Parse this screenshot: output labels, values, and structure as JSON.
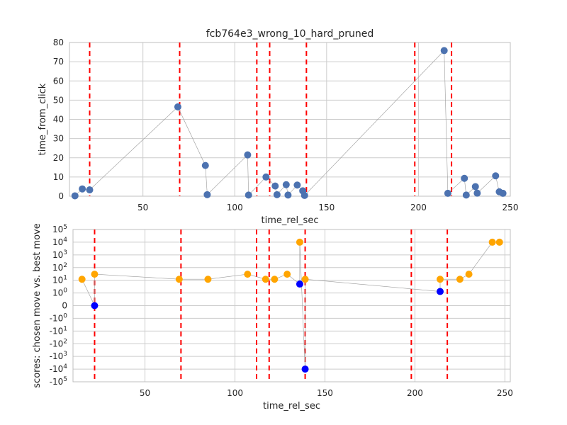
{
  "title": "fcb764e3_wrong_10_hard_pruned",
  "colors": {
    "grid": "#cccccc",
    "frame": "#bfbfbf",
    "vline": "#ff0000",
    "top_point": "#4c72b0",
    "best_point": "#0000ff",
    "chosen_point": "#ffa500",
    "connector": "#9a9a9a"
  },
  "chart_data": [
    {
      "type": "scatter",
      "xlabel": "time_rel_sec",
      "ylabel": "time_from_click",
      "xlim": [
        10,
        250
      ],
      "ylim": [
        0,
        80
      ],
      "xticks": [
        50,
        100,
        150,
        200,
        250
      ],
      "xtick_labels": [
        "50",
        "100",
        "150",
        "200",
        "250"
      ],
      "yticks": [
        0,
        10,
        20,
        30,
        40,
        50,
        60,
        70,
        80
      ],
      "ytick_labels": [
        "0",
        "10",
        "20",
        "30",
        "40",
        "50",
        "60",
        "70",
        "80"
      ],
      "grid": true,
      "vlines": [
        21,
        70,
        112,
        119,
        139,
        198,
        218
      ],
      "points": [
        {
          "x": 13,
          "y": 0.2
        },
        {
          "x": 17,
          "y": 3.8
        },
        {
          "x": 21,
          "y": 3.3
        },
        {
          "x": 69,
          "y": 46.5
        },
        {
          "x": 84,
          "y": 16
        },
        {
          "x": 85,
          "y": 0.8
        },
        {
          "x": 107,
          "y": 21.5
        },
        {
          "x": 107.5,
          "y": 0.6
        },
        {
          "x": 117,
          "y": 10
        },
        {
          "x": 122,
          "y": 5.3
        },
        {
          "x": 123,
          "y": 0.8
        },
        {
          "x": 128,
          "y": 6
        },
        {
          "x": 129,
          "y": 0.6
        },
        {
          "x": 134,
          "y": 5.8
        },
        {
          "x": 137,
          "y": 2.8
        },
        {
          "x": 138,
          "y": 0.4
        },
        {
          "x": 214,
          "y": 75.8
        },
        {
          "x": 216,
          "y": 1.5
        },
        {
          "x": 225,
          "y": 9.3
        },
        {
          "x": 226,
          "y": 0.6
        },
        {
          "x": 231,
          "y": 5
        },
        {
          "x": 232,
          "y": 1.6
        },
        {
          "x": 242,
          "y": 10.6
        },
        {
          "x": 244,
          "y": 2.3
        },
        {
          "x": 246,
          "y": 1.5
        }
      ]
    },
    {
      "type": "scatter",
      "xlabel": "time_rel_sec",
      "ylabel": "scores: chosen move vs. best move",
      "yscale": "symlog",
      "xlim": [
        10,
        253
      ],
      "xticks": [
        50,
        100,
        150,
        200,
        250
      ],
      "xtick_labels": [
        "50",
        "100",
        "150",
        "200",
        "250"
      ],
      "yticks": [
        -100000,
        -10000,
        -1000,
        -100,
        -10,
        -1,
        0,
        1,
        10,
        100,
        1000,
        10000,
        100000
      ],
      "ytick_labels": [
        "-10^5",
        "-10^4",
        "-10^3",
        "-10^2",
        "-10^1",
        "-10^0",
        "0",
        "10^0",
        "10^1",
        "10^2",
        "10^3",
        "10^4",
        "10^5"
      ],
      "grid": true,
      "vlines": [
        22,
        70,
        112,
        119,
        139,
        198,
        218
      ],
      "series": [
        {
          "color": "blue",
          "points": [
            {
              "x": 22,
              "y": 0
            },
            {
              "x": 136,
              "y": 5
            },
            {
              "x": 139,
              "y": -10000
            },
            {
              "x": 214,
              "y": 1.3
            }
          ]
        },
        {
          "color": "orange",
          "points": [
            {
              "x": 15,
              "y": 12
            },
            {
              "x": 22,
              "y": 30
            },
            {
              "x": 69,
              "y": 12
            },
            {
              "x": 85,
              "y": 12
            },
            {
              "x": 107,
              "y": 30
            },
            {
              "x": 117,
              "y": 12
            },
            {
              "x": 122,
              "y": 12
            },
            {
              "x": 129,
              "y": 30
            },
            {
              "x": 136,
              "y": 10000
            },
            {
              "x": 139,
              "y": 12
            },
            {
              "x": 214,
              "y": 12
            },
            {
              "x": 225,
              "y": 12
            },
            {
              "x": 230,
              "y": 30
            },
            {
              "x": 243,
              "y": 10000
            },
            {
              "x": 247,
              "y": 10000
            }
          ]
        }
      ]
    }
  ]
}
